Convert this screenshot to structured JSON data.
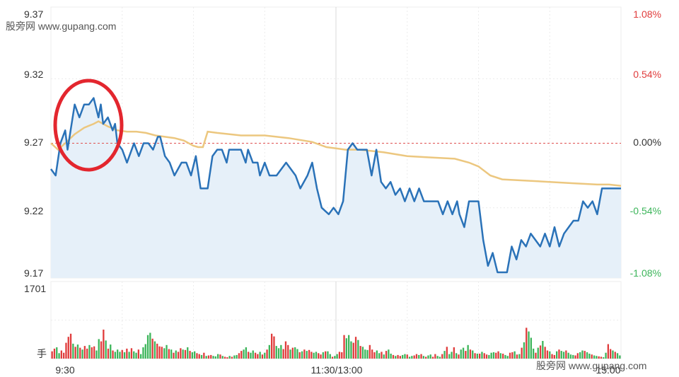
{
  "watermark": {
    "top_left": "股旁网 www.gupang.com",
    "bottom_right": "股旁网 www.gupang.com"
  },
  "colors": {
    "price_line": "#2a72b8",
    "avg_line": "#ecc77f",
    "area_fill": "#e6f0f9",
    "up": "#e03c3c",
    "down": "#3cb55a",
    "grid": "#ececec",
    "baseline": "#e05050",
    "annotation": "#e3262e"
  },
  "chart_data": [
    {
      "type": "line",
      "name": "price",
      "y_left_ticks": [
        "9.37",
        "9.32",
        "9.27",
        "9.22",
        "9.17"
      ],
      "y_left_values": [
        9.37,
        9.32,
        9.27,
        9.22,
        9.17
      ],
      "y_right_ticks": [
        "1.08%",
        "0.54%",
        "0.00%",
        "-0.54%",
        "-1.08%"
      ],
      "ylim": [
        9.17,
        9.37
      ],
      "baseline": 9.27,
      "x_ticks": [
        "9:30",
        "11:30/13:00",
        "15:00"
      ],
      "x_range": [
        0,
        240
      ],
      "series": [
        {
          "name": "",
          "x": [
            0,
            2,
            4,
            6,
            7,
            10,
            12,
            14,
            16,
            18,
            20,
            21,
            22,
            24,
            26,
            27,
            28,
            30,
            32,
            34,
            35,
            37,
            39,
            41,
            43,
            45,
            46,
            48,
            50,
            52,
            55,
            57,
            59,
            61,
            63,
            64,
            66,
            68,
            70,
            72,
            74,
            75,
            77,
            80,
            82,
            83,
            85,
            87,
            88,
            90,
            92,
            95,
            99,
            101,
            103,
            105,
            108,
            110,
            112,
            114,
            117,
            119,
            121,
            123,
            125,
            127,
            129,
            131,
            133,
            135,
            137,
            139,
            141,
            143,
            145,
            147,
            149,
            151,
            153,
            155,
            157,
            159,
            161,
            163,
            165,
            167,
            169,
            171,
            172,
            174,
            176,
            178,
            180,
            182,
            184,
            186,
            188,
            190,
            192,
            194,
            196,
            198,
            200,
            202,
            204,
            206,
            208,
            210,
            212,
            214,
            216,
            218,
            220,
            222,
            224,
            226,
            228,
            230,
            232,
            234,
            236,
            238,
            240
          ],
          "values": [
            9.25,
            9.245,
            9.27,
            9.28,
            9.265,
            9.3,
            9.29,
            9.3,
            9.3,
            9.305,
            9.29,
            9.3,
            9.285,
            9.29,
            9.28,
            9.285,
            9.27,
            9.265,
            9.255,
            9.265,
            9.27,
            9.26,
            9.27,
            9.27,
            9.265,
            9.275,
            9.275,
            9.26,
            9.255,
            9.245,
            9.255,
            9.255,
            9.245,
            9.26,
            9.235,
            9.235,
            9.235,
            9.26,
            9.265,
            9.265,
            9.255,
            9.265,
            9.265,
            9.265,
            9.255,
            9.265,
            9.255,
            9.255,
            9.245,
            9.255,
            9.245,
            9.245,
            9.255,
            9.25,
            9.245,
            9.235,
            9.245,
            9.255,
            9.235,
            9.22,
            9.215,
            9.22,
            9.215,
            9.225,
            9.265,
            9.27,
            9.265,
            9.265,
            9.265,
            9.245,
            9.265,
            9.24,
            9.235,
            9.24,
            9.23,
            9.235,
            9.225,
            9.235,
            9.225,
            9.235,
            9.225,
            9.225,
            9.225,
            9.225,
            9.215,
            9.225,
            9.215,
            9.225,
            9.215,
            9.205,
            9.225,
            9.225,
            9.225,
            9.195,
            9.175,
            9.185,
            9.17,
            9.17,
            9.17,
            9.19,
            9.18,
            9.195,
            9.19,
            9.2,
            9.195,
            9.19,
            9.2,
            9.19,
            9.205,
            9.19,
            9.2,
            9.205,
            9.21,
            9.21,
            9.225,
            9.22,
            9.225,
            9.215,
            9.235,
            9.235,
            9.235,
            9.235,
            9.235
          ]
        },
        {
          "name": "",
          "x": [
            0,
            3,
            6,
            10,
            14,
            18,
            20,
            24,
            28,
            32,
            36,
            40,
            44,
            48,
            52,
            56,
            60,
            62,
            64,
            66,
            70,
            80,
            90,
            100,
            110,
            116,
            120,
            124,
            130,
            140,
            150,
            160,
            170,
            176,
            180,
            185,
            190,
            200,
            210,
            220,
            230,
            235,
            240
          ],
          "values": [
            9.27,
            9.265,
            9.27,
            9.277,
            9.282,
            9.285,
            9.287,
            9.283,
            9.28,
            9.279,
            9.279,
            9.278,
            9.276,
            9.275,
            9.274,
            9.272,
            9.268,
            9.267,
            9.267,
            9.279,
            9.278,
            9.276,
            9.276,
            9.274,
            9.271,
            9.267,
            9.266,
            9.265,
            9.265,
            9.263,
            9.26,
            9.259,
            9.258,
            9.255,
            9.252,
            9.245,
            9.242,
            9.241,
            9.24,
            9.239,
            9.238,
            9.238,
            9.237
          ]
        }
      ],
      "annotation": "red-ellipse-around-early-spike"
    },
    {
      "type": "bar",
      "name": "volume",
      "y_ticks": [
        "1701",
        "手"
      ],
      "ymax": 1701,
      "values": [
        160,
        220,
        250,
        120,
        180,
        130,
        350,
        480,
        550,
        330,
        260,
        310,
        240,
        200,
        280,
        220,
        300,
        250,
        270,
        180,
        430,
        380,
        640,
        400,
        220,
        310,
        180,
        150,
        200,
        150,
        190,
        140,
        220,
        150,
        230,
        160,
        130,
        200,
        100,
        250,
        320,
        520,
        570,
        440,
        380,
        330,
        270,
        260,
        230,
        300,
        210,
        200,
        130,
        180,
        150,
        230,
        200,
        190,
        250,
        170,
        140,
        160,
        120,
        100,
        80,
        130,
        60,
        70,
        80,
        60,
        50,
        100,
        90,
        60,
        40,
        30,
        60,
        40,
        70,
        80,
        120,
        170,
        200,
        250,
        150,
        130,
        180,
        130,
        100,
        150,
        90,
        130,
        200,
        300,
        550,
        490,
        280,
        230,
        300,
        210,
        380,
        300,
        200,
        240,
        250,
        210,
        140,
        160,
        200,
        170,
        190,
        150,
        130,
        150,
        120,
        90,
        140,
        160,
        160,
        100,
        40,
        60,
        100,
        150,
        140,
        520,
        450,
        520,
        380,
        350,
        480,
        410,
        280,
        260,
        200,
        190,
        300,
        200,
        140,
        180,
        120,
        150,
        90,
        170,
        200,
        110,
        80,
        60,
        80,
        60,
        80,
        100,
        90,
        40,
        60,
        70,
        100,
        80,
        100,
        60,
        40,
        70,
        90,
        40,
        100,
        60,
        40,
        100,
        170,
        260,
        100,
        150,
        250,
        120,
        90,
        200,
        240,
        170,
        300,
        200,
        180,
        120,
        110,
        110,
        150,
        120,
        90,
        80,
        130,
        140,
        130,
        160,
        120,
        110,
        80,
        60,
        130,
        140,
        160,
        90,
        100,
        240,
        360,
        680,
        600,
        460,
        220,
        130,
        240,
        290,
        390,
        260,
        180,
        160,
        100,
        80,
        160,
        200,
        170,
        150,
        180,
        130,
        90,
        80,
        70,
        120,
        140,
        180,
        170,
        140,
        110,
        90,
        70,
        60,
        50,
        40,
        30,
        130,
        320,
        210,
        180,
        150,
        120,
        70
      ],
      "colors": [
        "up",
        "up",
        "down",
        "down",
        "up",
        "up",
        "up",
        "up",
        "up",
        "down",
        "up",
        "down",
        "up",
        "down",
        "up",
        "up",
        "down",
        "up",
        "up",
        "down",
        "down",
        "up",
        "up",
        "down",
        "up",
        "down",
        "up",
        "down",
        "down",
        "down",
        "up",
        "down",
        "up",
        "down",
        "up",
        "down",
        "down",
        "up",
        "down",
        "down",
        "down",
        "down",
        "down",
        "up",
        "down",
        "up",
        "up",
        "up",
        "down",
        "down",
        "up",
        "down",
        "up",
        "down",
        "up",
        "up",
        "down",
        "up",
        "down",
        "up",
        "down",
        "down",
        "up",
        "up",
        "down",
        "up",
        "down",
        "up",
        "up",
        "down",
        "down",
        "down",
        "up",
        "down",
        "up",
        "up",
        "down",
        "up",
        "down",
        "down",
        "up",
        "up",
        "down",
        "down",
        "up",
        "down",
        "down",
        "up",
        "up",
        "down",
        "up",
        "down",
        "up",
        "down",
        "up",
        "up",
        "down",
        "down",
        "down",
        "up",
        "up",
        "up",
        "down",
        "up",
        "down",
        "down",
        "up",
        "down",
        "up",
        "down",
        "up",
        "up",
        "down",
        "down",
        "up",
        "up",
        "down",
        "up",
        "down",
        "down",
        "up",
        "down",
        "down",
        "up",
        "up",
        "up",
        "down",
        "down",
        "down",
        "up",
        "up",
        "down",
        "up",
        "down",
        "down",
        "down",
        "up",
        "up",
        "up",
        "down",
        "down",
        "up",
        "down",
        "up",
        "down",
        "down",
        "up",
        "down",
        "up",
        "up",
        "down",
        "down",
        "up",
        "down",
        "down",
        "up",
        "up",
        "down",
        "up",
        "down",
        "up",
        "down",
        "down",
        "up",
        "up",
        "down",
        "down",
        "up",
        "down",
        "up",
        "down",
        "down",
        "up",
        "down",
        "up",
        "down",
        "down",
        "up",
        "down",
        "up",
        "down",
        "up",
        "down",
        "up",
        "down",
        "up",
        "up",
        "down",
        "down",
        "down",
        "up",
        "up",
        "down",
        "up",
        "down",
        "down",
        "up",
        "up",
        "down",
        "up",
        "down",
        "up",
        "down",
        "up",
        "down",
        "down",
        "down",
        "up",
        "down",
        "up",
        "down",
        "up",
        "up",
        "down",
        "up",
        "up",
        "down",
        "up",
        "down",
        "down",
        "up",
        "down",
        "down",
        "down",
        "up",
        "up",
        "down",
        "down",
        "up",
        "down",
        "down",
        "up",
        "down",
        "down",
        "up",
        "up",
        "down",
        "down",
        "up",
        "up",
        "down",
        "up"
      ]
    }
  ]
}
